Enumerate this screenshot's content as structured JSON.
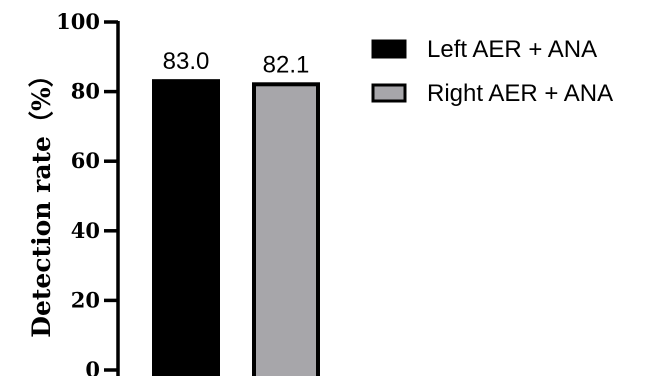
{
  "chart_data": {
    "type": "bar",
    "categories": [
      "Left AER + ANA",
      "Right AER + ANA"
    ],
    "values": [
      83.0,
      82.1
    ],
    "data_labels": [
      "83.0",
      "82.1"
    ],
    "ylabel": "Detection rate（%）",
    "ylim": [
      0,
      100
    ],
    "yticks": [
      "0",
      "20",
      "40",
      "60",
      "80",
      "100"
    ],
    "series": [
      {
        "name": "Left AER +  ANA",
        "color": "#000000"
      },
      {
        "name": "Right AER +  ANA",
        "color": "#a7a6aa"
      }
    ],
    "grid": false,
    "legend_position": "top-right"
  }
}
